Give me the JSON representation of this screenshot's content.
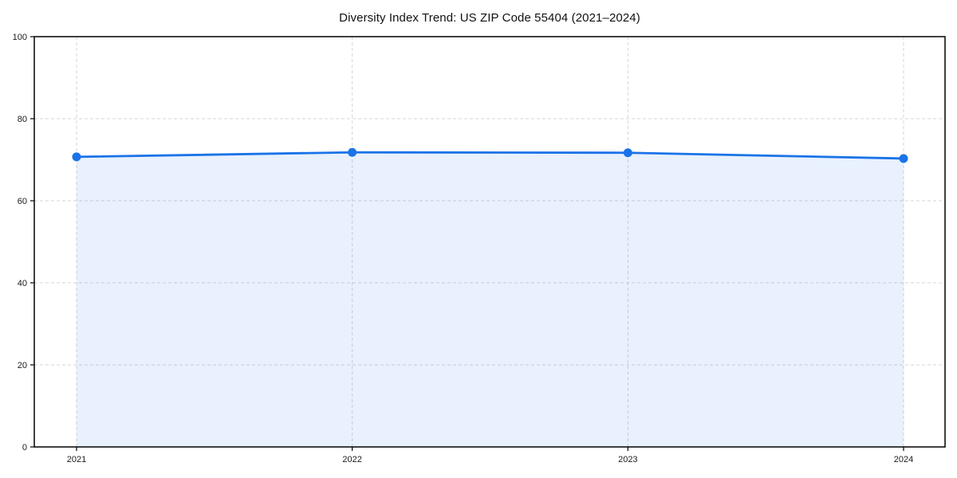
{
  "chart_data": {
    "type": "area",
    "title": "Diversity Index Trend: US ZIP Code 55404 (2021–2024)",
    "xlabel": "",
    "ylabel": "",
    "x": [
      2021,
      2022,
      2023,
      2024
    ],
    "x_tick_labels": [
      "2021",
      "2022",
      "2023",
      "2024"
    ],
    "y_tick_labels": [
      "0",
      "20",
      "40",
      "60",
      "80",
      "100"
    ],
    "yticks": [
      0,
      20,
      40,
      60,
      80,
      100
    ],
    "ylim": [
      0,
      100
    ],
    "series": [
      {
        "name": "Diversity Index",
        "values": [
          70.7,
          71.8,
          71.7,
          70.3
        ]
      }
    ],
    "grid": true,
    "grid_style": "dashed",
    "legend": false,
    "colors": {
      "line": "#1a73e8",
      "marker": "#1a73e8",
      "area_fill": "#1a73e8",
      "area_opacity": 0.1,
      "grid": "#d5d5d5",
      "spine": "#000000",
      "tick": "#000000",
      "tick_label": "#1a1a1a",
      "title": "#111111",
      "background": "#ffffff"
    }
  }
}
